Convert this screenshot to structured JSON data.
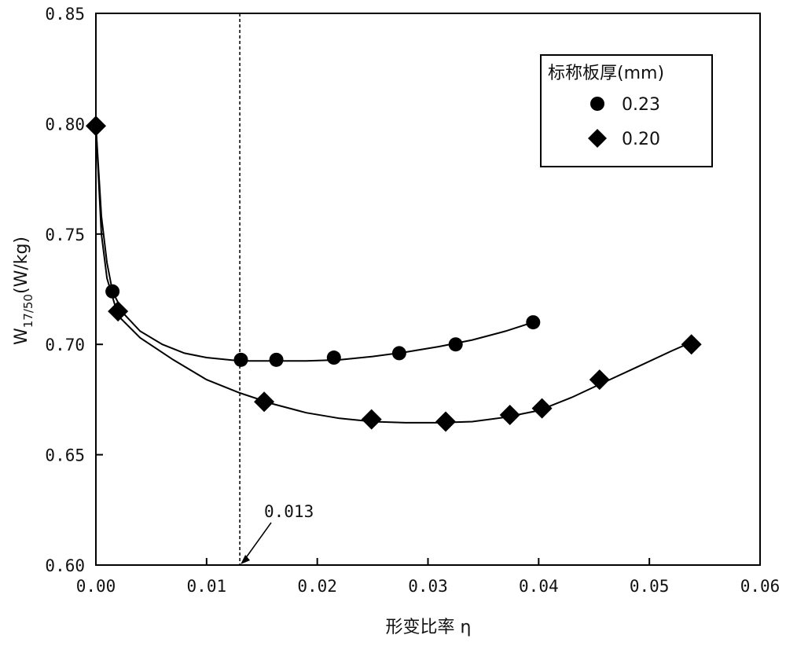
{
  "chart_data": {
    "type": "scatter",
    "xlabel": "形变比率 η",
    "ylabel_main": "W",
    "ylabel_sub": "17/50",
    "ylabel_unit": "(W/kg)",
    "xlim": [
      0.0,
      0.06
    ],
    "ylim": [
      0.6,
      0.85
    ],
    "x_ticks": [
      0.0,
      0.01,
      0.02,
      0.03,
      0.04,
      0.05,
      0.06
    ],
    "x_tick_labels": [
      "0.00",
      "0.01",
      "0.02",
      "0.03",
      "0.04",
      "0.05",
      "0.06"
    ],
    "y_ticks": [
      0.6,
      0.65,
      0.7,
      0.75,
      0.8,
      0.85
    ],
    "y_tick_labels": [
      "0.60",
      "0.65",
      "0.70",
      "0.75",
      "0.80",
      "0.85"
    ],
    "grid": false,
    "legend": {
      "title": "标称板厚(mm)",
      "placement": "top-right"
    },
    "series": [
      {
        "name": "0.23",
        "marker": "circle",
        "color": "#000000",
        "x": [
          0.0,
          0.0015,
          0.0131,
          0.0163,
          0.0215,
          0.0274,
          0.0325,
          0.0395
        ],
        "y": [
          0.799,
          0.724,
          0.693,
          0.693,
          0.694,
          0.696,
          0.7,
          0.71
        ]
      },
      {
        "name": "0.20",
        "marker": "diamond",
        "color": "#000000",
        "x": [
          0.0,
          0.002,
          0.0152,
          0.0249,
          0.0316,
          0.0374,
          0.0403,
          0.0455,
          0.0538
        ],
        "y": [
          0.799,
          0.715,
          0.674,
          0.666,
          0.665,
          0.668,
          0.671,
          0.684,
          0.7
        ]
      }
    ],
    "fit_curves": [
      {
        "series": "0.23",
        "x": [
          0.0,
          0.0005,
          0.001,
          0.0015,
          0.0025,
          0.004,
          0.006,
          0.008,
          0.01,
          0.013,
          0.016,
          0.019,
          0.022,
          0.025,
          0.028,
          0.031,
          0.034,
          0.037,
          0.0395
        ],
        "y": [
          0.799,
          0.758,
          0.737,
          0.724,
          0.714,
          0.706,
          0.7,
          0.696,
          0.694,
          0.6925,
          0.6925,
          0.6925,
          0.693,
          0.6945,
          0.6965,
          0.699,
          0.702,
          0.706,
          0.71
        ]
      },
      {
        "series": "0.20",
        "x": [
          0.0,
          0.0005,
          0.001,
          0.002,
          0.004,
          0.007,
          0.01,
          0.013,
          0.016,
          0.019,
          0.022,
          0.025,
          0.028,
          0.031,
          0.034,
          0.037,
          0.04,
          0.043,
          0.046,
          0.049,
          0.052,
          0.0538
        ],
        "y": [
          0.799,
          0.75,
          0.73,
          0.713,
          0.703,
          0.693,
          0.684,
          0.678,
          0.673,
          0.669,
          0.6665,
          0.665,
          0.6645,
          0.6645,
          0.665,
          0.667,
          0.67,
          0.676,
          0.683,
          0.69,
          0.697,
          0.701
        ]
      }
    ],
    "reference_line": {
      "x": 0.013,
      "style": "dashed",
      "label": "0.013"
    }
  }
}
